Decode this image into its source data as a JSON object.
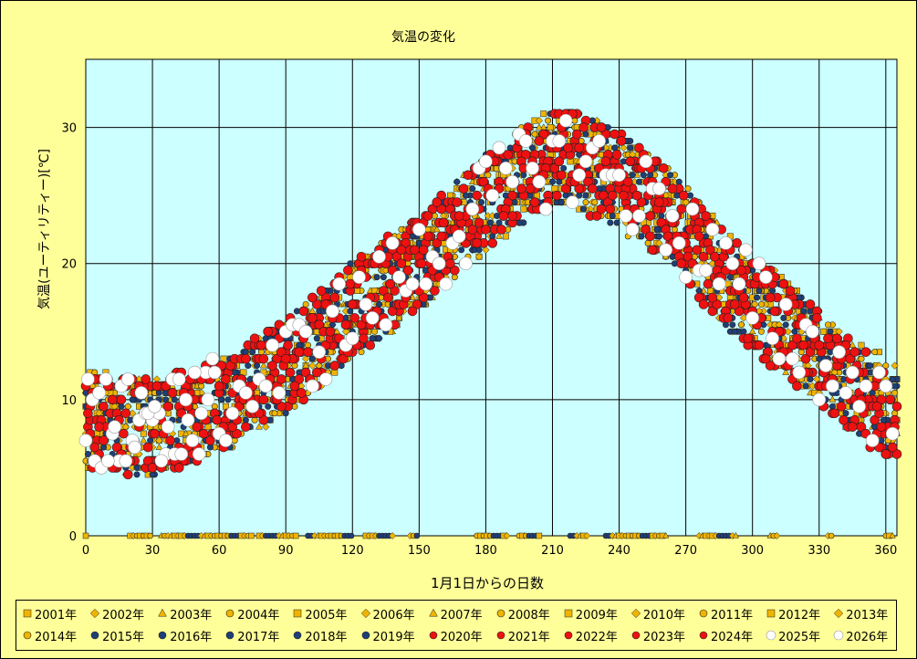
{
  "chart_data": {
    "type": "scatter",
    "title": "気温の変化",
    "xlabel": "1月1日からの日数",
    "ylabel": "気温(ユーティリティー)[℃]",
    "xlim": [
      0,
      365
    ],
    "ylim": [
      0,
      35
    ],
    "x_ticks": [
      0,
      30,
      60,
      90,
      120,
      150,
      180,
      210,
      240,
      270,
      300,
      330,
      360
    ],
    "y_ticks": [
      0,
      10,
      20,
      30
    ],
    "grid": true,
    "legend_position": "bottom",
    "plot_background": "#ccffff",
    "figure_background": "#ffff99",
    "climatology": {
      "description_days": [
        0,
        30,
        60,
        90,
        120,
        150,
        180,
        200,
        215,
        230,
        260,
        290,
        320,
        345,
        365
      ],
      "mean_temp": [
        8.5,
        8.0,
        9.5,
        12.5,
        16.5,
        20.0,
        24.5,
        27.0,
        28.0,
        27.0,
        24.0,
        18.5,
        14.5,
        11.0,
        9.0
      ],
      "spread": 3.5
    },
    "series": [
      {
        "name": "2001年",
        "marker": "square",
        "color": "#f0b400"
      },
      {
        "name": "2002年",
        "marker": "diamond",
        "color": "#f0b400"
      },
      {
        "name": "2003年",
        "marker": "triangle",
        "color": "#f0b400"
      },
      {
        "name": "2004年",
        "marker": "circle",
        "color": "#f0b400"
      },
      {
        "name": "2005年",
        "marker": "square",
        "color": "#f0b400"
      },
      {
        "name": "2006年",
        "marker": "diamond",
        "color": "#f0b400"
      },
      {
        "name": "2007年",
        "marker": "triangle",
        "color": "#f0b400"
      },
      {
        "name": "2008年",
        "marker": "circle",
        "color": "#f0b400"
      },
      {
        "name": "2009年",
        "marker": "square",
        "color": "#f0b400"
      },
      {
        "name": "2010年",
        "marker": "diamond",
        "color": "#f0b400"
      },
      {
        "name": "2011年",
        "marker": "circle",
        "color": "#f0b400"
      },
      {
        "name": "2012年",
        "marker": "square",
        "color": "#f0b400"
      },
      {
        "name": "2013年",
        "marker": "diamond",
        "color": "#f0b400"
      },
      {
        "name": "2014年",
        "marker": "circle",
        "color": "#f0b400"
      },
      {
        "name": "2015年",
        "marker": "circle",
        "color": "#1f3f77"
      },
      {
        "name": "2016年",
        "marker": "circle",
        "color": "#1f3f77"
      },
      {
        "name": "2017年",
        "marker": "circle",
        "color": "#1f3f77"
      },
      {
        "name": "2018年",
        "marker": "circle",
        "color": "#1f3f77"
      },
      {
        "name": "2019年",
        "marker": "circle",
        "color": "#1f3f77"
      },
      {
        "name": "2020年",
        "marker": "circle",
        "color": "#ee1111"
      },
      {
        "name": "2021年",
        "marker": "circle",
        "color": "#ee1111"
      },
      {
        "name": "2022年",
        "marker": "circle",
        "color": "#ee1111"
      },
      {
        "name": "2023年",
        "marker": "circle",
        "color": "#ee1111"
      },
      {
        "name": "2024年",
        "marker": "circle",
        "color": "#ee1111"
      },
      {
        "name": "2025年",
        "marker": "circle",
        "color": "#ffffff"
      },
      {
        "name": "2026年",
        "marker": "circle",
        "color": "#ffffff"
      }
    ]
  }
}
